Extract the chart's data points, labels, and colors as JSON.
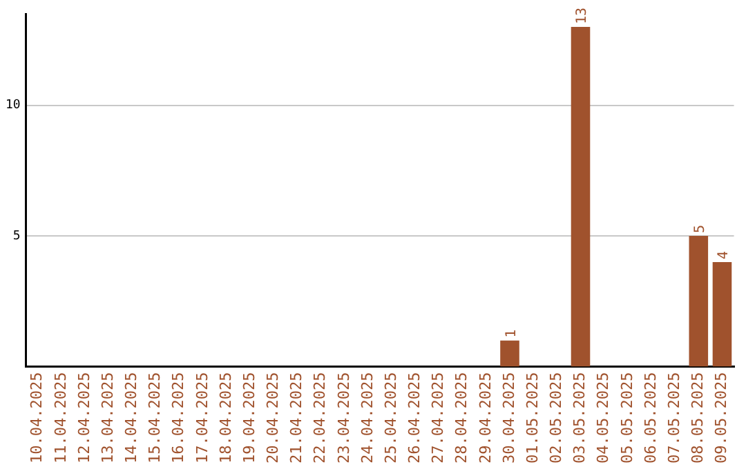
{
  "chart_data": {
    "type": "bar",
    "categories": [
      "10.04.2025",
      "11.04.2025",
      "12.04.2025",
      "13.04.2025",
      "14.04.2025",
      "15.04.2025",
      "16.04.2025",
      "17.04.2025",
      "18.04.2025",
      "19.04.2025",
      "20.04.2025",
      "21.04.2025",
      "22.04.2025",
      "23.04.2025",
      "24.04.2025",
      "25.04.2025",
      "26.04.2025",
      "27.04.2025",
      "28.04.2025",
      "29.04.2025",
      "30.04.2025",
      "01.05.2025",
      "02.05.2025",
      "03.05.2025",
      "04.05.2025",
      "05.05.2025",
      "06.05.2025",
      "07.05.2025",
      "08.05.2025",
      "09.05.2025"
    ],
    "values": [
      0,
      0,
      0,
      0,
      0,
      0,
      0,
      0,
      0,
      0,
      0,
      0,
      0,
      0,
      0,
      0,
      0,
      0,
      0,
      0,
      1,
      0,
      0,
      13,
      0,
      0,
      0,
      0,
      5,
      4
    ],
    "value_labels": [
      null,
      null,
      null,
      null,
      null,
      null,
      null,
      null,
      null,
      null,
      null,
      null,
      null,
      null,
      null,
      null,
      null,
      null,
      null,
      null,
      "1",
      null,
      null,
      "13",
      null,
      null,
      null,
      null,
      "5",
      "4"
    ],
    "color": "#a0522d",
    "ylim": [
      0,
      13.5
    ],
    "yticks": [
      5,
      10
    ],
    "grid": "y",
    "legend": false
  }
}
